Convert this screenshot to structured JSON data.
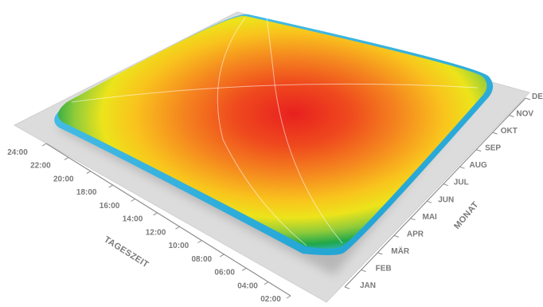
{
  "chart_data": {
    "type": "heatmap",
    "style": "3d-surface",
    "x_axis": {
      "label": "TAGESZEIT",
      "ticks": [
        "02:00",
        "04:00",
        "06:00",
        "08:00",
        "10:00",
        "12:00",
        "14:00",
        "16:00",
        "18:00",
        "20:00",
        "22:00",
        "24:00"
      ]
    },
    "y_axis": {
      "label": "MONAT",
      "ticks": [
        "JAN",
        "FEB",
        "MÄR",
        "APR",
        "MAI",
        "JUN",
        "JUL",
        "AUG",
        "SEP",
        "OKT",
        "NOV",
        "DEZ"
      ]
    },
    "peak": {
      "x": "12:00",
      "y": "JUN"
    },
    "color_scale": [
      "#38b7e3",
      "#1fa84a",
      "#f7e51b",
      "#f58a1f",
      "#e8201f"
    ],
    "grid": false,
    "legend": "none"
  }
}
